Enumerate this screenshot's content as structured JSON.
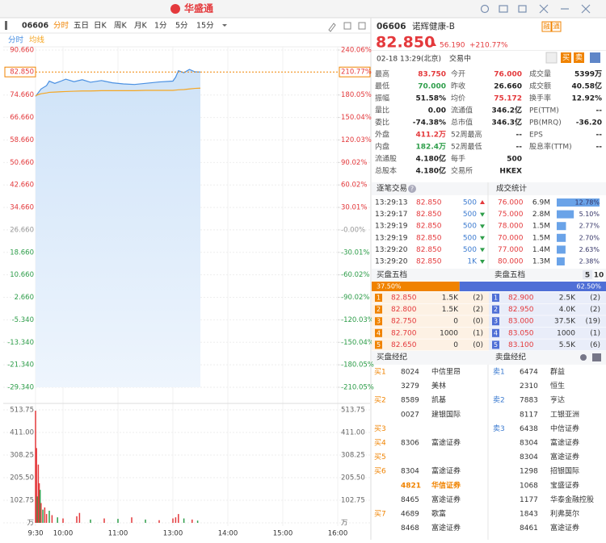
{
  "toolbar": {
    "logo": "华盛通",
    "code": "06606",
    "tabs": [
      "分时",
      "五日",
      "日K",
      "周K",
      "月K",
      "1分",
      "5分",
      "15分"
    ],
    "active_tab": 0
  },
  "chart_data": {
    "type": "line",
    "grid": true,
    "x": [
      9.5,
      9.55,
      9.6,
      9.7,
      9.75,
      9.85,
      9.95,
      10.05,
      10.2,
      10.35,
      10.5,
      10.7,
      10.9,
      11.1,
      11.3,
      11.5,
      11.75,
      12.0,
      13.05,
      13.1,
      13.2,
      13.3,
      13.4,
      13.5
    ],
    "xlim": [
      9.5,
      16
    ],
    "xticks": [
      {
        "value": 9.5,
        "label": "9:30"
      },
      {
        "value": 10,
        "label": "10:00"
      },
      {
        "value": 11,
        "label": "11:00"
      },
      {
        "value": 13,
        "label": "13:00"
      },
      {
        "value": 14,
        "label": "14:00"
      },
      {
        "value": 15,
        "label": "15:00"
      },
      {
        "value": 16,
        "label": "16:00"
      }
    ],
    "series": [
      {
        "name": "分时",
        "color": "#4a90e2",
        "values": [
          74.2,
          75.5,
          76.8,
          78.0,
          79.6,
          78.8,
          79.5,
          80.3,
          79.4,
          80.1,
          79.2,
          79.8,
          79.0,
          78.6,
          78.4,
          78.8,
          79.3,
          79.6,
          81.0,
          83.3,
          82.6,
          83.75,
          82.9,
          82.85
        ]
      },
      {
        "name": "均线",
        "color": "#f5a623",
        "values": [
          74.4,
          74.8,
          75.1,
          75.4,
          75.6,
          75.7,
          75.8,
          75.9,
          76.0,
          76.1,
          76.1,
          76.2,
          76.2,
          76.2,
          76.2,
          76.3,
          76.3,
          76.3,
          76.4,
          76.5,
          76.6,
          76.8,
          77.0,
          77.1
        ]
      }
    ],
    "ylim": [
      -29.34,
      90.66
    ],
    "yticks": [
      {
        "value": 90.66,
        "label": "90.660"
      },
      {
        "value": 74.66,
        "label": "74.660"
      },
      {
        "value": 66.66,
        "label": "66.660"
      },
      {
        "value": 58.66,
        "label": "58.660"
      },
      {
        "value": 50.66,
        "label": "50.660"
      },
      {
        "value": 42.66,
        "label": "42.660"
      },
      {
        "value": 34.66,
        "label": "34.660"
      },
      {
        "value": 26.66,
        "label": "26.660"
      },
      {
        "value": 18.66,
        "label": "18.660"
      },
      {
        "value": 10.66,
        "label": "10.660"
      },
      {
        "value": 2.66,
        "label": "2.660"
      },
      {
        "value": -5.34,
        "label": "-5.340"
      },
      {
        "value": -13.34,
        "label": "-13.340"
      },
      {
        "value": -21.34,
        "label": "-21.340"
      },
      {
        "value": -29.34,
        "label": "-29.340"
      }
    ],
    "y2lim": [
      -210.05,
      240.06
    ],
    "y2ticks": [
      {
        "value": 240.06,
        "label": "240.06%"
      },
      {
        "value": 180.05,
        "label": "180.05%"
      },
      {
        "value": 150.04,
        "label": "150.04%"
      },
      {
        "value": 120.03,
        "label": "120.03%"
      },
      {
        "value": 90.02,
        "label": "90.02%"
      },
      {
        "value": 60.02,
        "label": "60.02%"
      },
      {
        "value": 30.01,
        "label": "30.01%"
      },
      {
        "value": 0,
        "label": "-0.00%"
      },
      {
        "value": -30.01,
        "label": "-30.01%"
      },
      {
        "value": -60.02,
        "label": "-60.02%"
      },
      {
        "value": -90.02,
        "label": "-90.02%"
      },
      {
        "value": -120.03,
        "label": "-120.03%"
      },
      {
        "value": -150.04,
        "label": "-150.04%"
      },
      {
        "value": -180.05,
        "label": "-180.05%"
      },
      {
        "value": -210.05,
        "label": "-210.05%"
      }
    ],
    "last_price": {
      "value": 82.85,
      "label": "82.850"
    },
    "last_pct": {
      "value": 210.77,
      "label": "210.77%"
    },
    "volume": {
      "x": [
        9.5,
        9.517,
        9.533,
        9.55,
        9.567,
        9.583,
        9.6,
        9.633,
        9.667,
        9.7,
        9.75,
        9.8,
        9.9,
        10.0,
        10.25,
        10.3,
        10.5,
        10.75,
        11.0,
        11.25,
        11.5,
        11.75,
        12.0,
        13.05,
        13.1,
        13.2,
        13.35,
        13.45
      ],
      "values": [
        510,
        340,
        120,
        265,
        180,
        150,
        90,
        60,
        70,
        40,
        55,
        35,
        25,
        20,
        30,
        45,
        15,
        20,
        18,
        25,
        15,
        12,
        20,
        25,
        40,
        20,
        15,
        10
      ],
      "directions": [
        "up",
        "up",
        "down",
        "up",
        "up",
        "down",
        "up",
        "down",
        "up",
        "up",
        "down",
        "up",
        "down",
        "up",
        "up",
        "up",
        "down",
        "up",
        "down",
        "up",
        "down",
        "up",
        "up",
        "up",
        "up",
        "down",
        "up",
        "down"
      ],
      "ylim": [
        0,
        513.75
      ],
      "yticks": [
        {
          "value": 0,
          "label": "万"
        },
        102.75,
        {
          "value": 205.5,
          "label": "205.50"
        },
        308.25,
        {
          "value": 411,
          "label": "411.00"
        },
        513.75
      ]
    }
  },
  "quote": {
    "code": "06606",
    "name": "诺辉健康-B",
    "badges": [
      "融",
      "通"
    ],
    "price": "82.850",
    "change": "56.190",
    "pct": "+210.77%",
    "time": "02-18  13:29(北京)",
    "status": "交易中",
    "buttons": [
      "买",
      "卖"
    ],
    "stats": [
      [
        {
          "label": "最高",
          "value": "83.750",
          "tone": "up"
        },
        {
          "label": "今开",
          "value": "76.000",
          "tone": "up"
        },
        {
          "label": "成交量",
          "value": "5399万"
        }
      ],
      [
        {
          "label": "最低",
          "value": "70.000",
          "tone": "down"
        },
        {
          "label": "昨收",
          "value": "26.660"
        },
        {
          "label": "成交额",
          "value": "40.58亿"
        }
      ],
      [
        {
          "label": "振幅",
          "value": "51.58%"
        },
        {
          "label": "均价",
          "value": "75.172",
          "tone": "up"
        },
        {
          "label": "换手率",
          "value": "12.92%"
        }
      ],
      [
        {
          "label": "量比",
          "value": "0.00"
        },
        {
          "label": "流通值",
          "value": "346.2亿"
        },
        {
          "label": "PE(TTM)",
          "value": "--"
        }
      ],
      [
        {
          "label": "委比",
          "value": "-74.38%"
        },
        {
          "label": "总市值",
          "value": "346.3亿"
        },
        {
          "label": "PB(MRQ)",
          "value": "-36.20"
        }
      ],
      [
        {
          "label": "外盘",
          "value": "411.2万",
          "tone": "up"
        },
        {
          "label": "52周最高",
          "value": "--"
        },
        {
          "label": "EPS",
          "value": "--"
        }
      ],
      [
        {
          "label": "内盘",
          "value": "182.4万",
          "tone": "down"
        },
        {
          "label": "52周最低",
          "value": "--"
        },
        {
          "label": "股息率(TTM)",
          "value": "--"
        }
      ],
      [
        {
          "label": "流通股",
          "value": "4.180亿"
        },
        {
          "label": "每手",
          "value": "500"
        }
      ],
      [
        {
          "label": "总股本",
          "value": "4.180亿"
        },
        {
          "label": "交易所",
          "value": "HKEX"
        }
      ]
    ]
  },
  "trades": {
    "title": "逐笔交易",
    "help": "?",
    "rows": [
      {
        "time": "13:29:13",
        "price": "82.850",
        "vol": "500",
        "dir": "up"
      },
      {
        "time": "13:29:17",
        "price": "82.850",
        "vol": "500",
        "dir": "down"
      },
      {
        "time": "13:29:19",
        "price": "82.850",
        "vol": "500",
        "dir": "down"
      },
      {
        "time": "13:29:19",
        "price": "82.850",
        "vol": "500",
        "dir": "down"
      },
      {
        "time": "13:29:20",
        "price": "82.850",
        "vol": "500",
        "dir": "down"
      },
      {
        "time": "13:29:20",
        "price": "82.850",
        "vol": "1K",
        "dir": "down"
      }
    ]
  },
  "deal_stats": {
    "title": "成交统计",
    "prices": [
      "76.000",
      "75.000",
      "78.000",
      "70.000",
      "77.000",
      "80.000"
    ],
    "vols": [
      "6.9M",
      "2.8M",
      "1.5M",
      "1.5M",
      "1.4M",
      "1.3M"
    ],
    "pct": [
      12.78,
      5.1,
      2.77,
      2.7,
      2.63,
      2.38
    ],
    "pct_labels": [
      "12.78%",
      "5.10%",
      "2.77%",
      "2.70%",
      "2.63%",
      "2.38%"
    ]
  },
  "order_book": {
    "bid_title": "买盘五档",
    "ask_title": "卖盘五档",
    "depth_options": [
      "5",
      "10"
    ],
    "ratio": [
      37.5,
      62.5
    ],
    "ratio_labels": [
      "37.50%",
      "62.50%"
    ],
    "bids": [
      [
        "1",
        "82.850",
        "1.5K",
        "(2)"
      ],
      [
        "2",
        "82.800",
        "1.5K",
        "(2)"
      ],
      [
        "3",
        "82.750",
        "0",
        "(0)"
      ],
      [
        "4",
        "82.700",
        "1000",
        "(1)"
      ],
      [
        "5",
        "82.650",
        "0",
        "(0)"
      ]
    ],
    "asks": [
      [
        "1",
        "82.900",
        "2.5K",
        "(2)"
      ],
      [
        "2",
        "82.950",
        "4.0K",
        "(2)"
      ],
      [
        "3",
        "83.000",
        "37.5K",
        "(19)"
      ],
      [
        "4",
        "83.050",
        "1000",
        "(1)"
      ],
      [
        "5",
        "83.100",
        "5.5K",
        "(6)"
      ]
    ]
  },
  "brokers": {
    "buy_title": "买盘经纪",
    "sell_title": "卖盘经纪",
    "highlight_buy_row": 8,
    "buy": [
      [
        "买1",
        "8024",
        "中信里昂"
      ],
      [
        null,
        "3279",
        "美林"
      ],
      [
        "买2",
        "8589",
        "凯基"
      ],
      [
        null,
        "0027",
        "建银国际"
      ],
      [
        "买3",
        null,
        null
      ],
      [
        "买4",
        "8306",
        "富途证券"
      ],
      [
        "买5",
        null,
        null
      ],
      [
        "买6",
        "8304",
        "富途证券"
      ],
      [
        null,
        "4821",
        "华信证券"
      ],
      [
        null,
        "8465",
        "富途证券"
      ],
      [
        "买7",
        "4689",
        "歌富"
      ],
      [
        null,
        "8468",
        "富途证券"
      ]
    ],
    "sell": [
      [
        "卖1",
        "6474",
        "群益"
      ],
      [
        null,
        "2310",
        "恒生"
      ],
      [
        "卖2",
        "7883",
        "亨达"
      ],
      [
        null,
        "8117",
        "工银亚洲"
      ],
      [
        "卖3",
        "6438",
        "中信证券"
      ],
      [
        null,
        "8304",
        "富途证券"
      ],
      [
        null,
        "8304",
        "富途证券"
      ],
      [
        null,
        "1298",
        "招银国际"
      ],
      [
        null,
        "1068",
        "宝盛证券"
      ],
      [
        null,
        "1177",
        "华泰金融控股"
      ],
      [
        null,
        "1843",
        "利弗莫尔"
      ],
      [
        null,
        "8461",
        "富途证券"
      ]
    ]
  }
}
